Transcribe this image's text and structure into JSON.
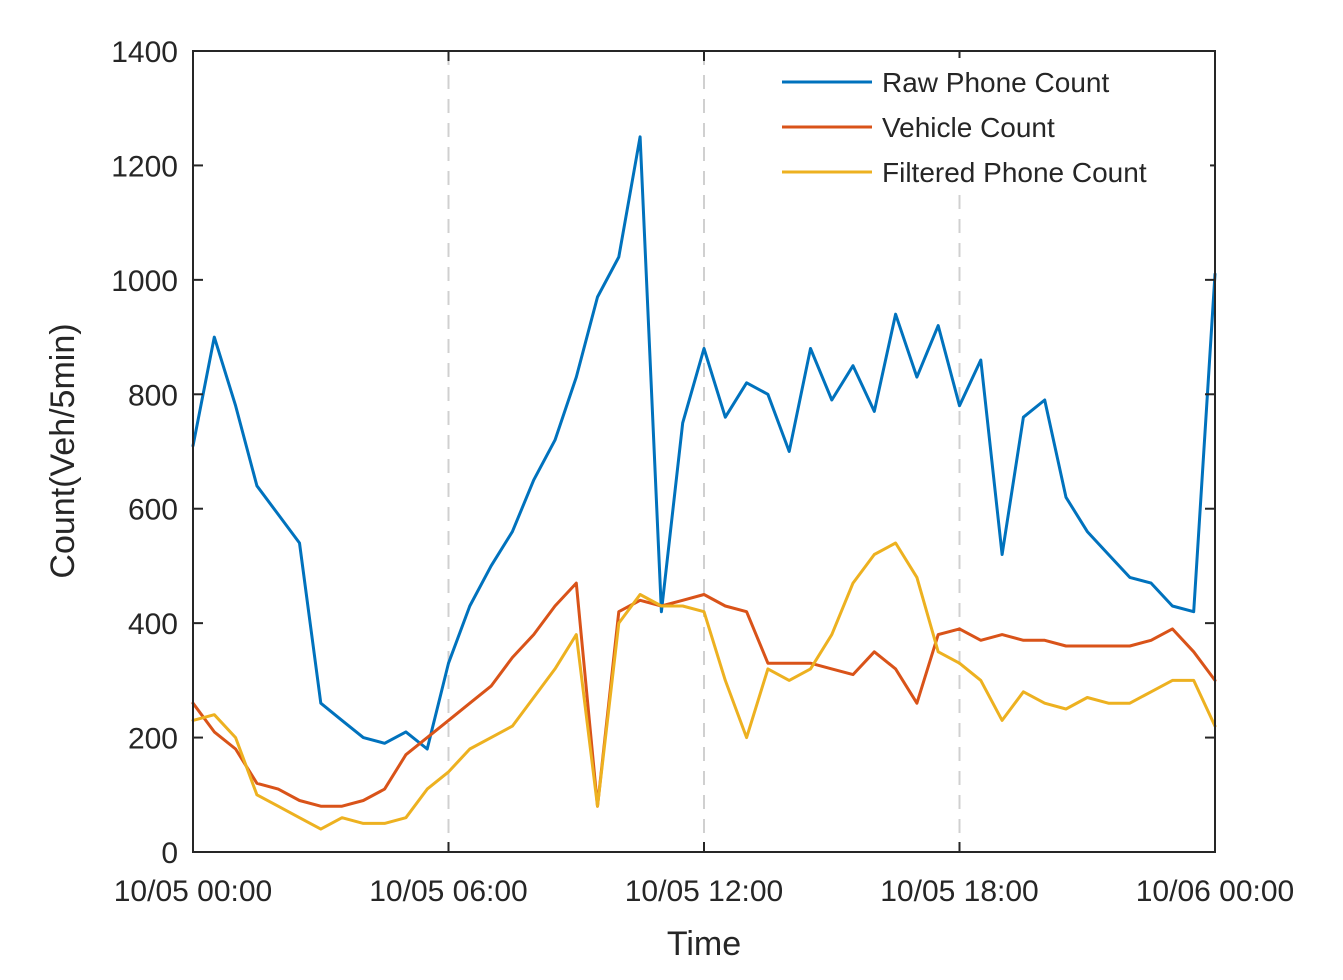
{
  "chart_data": {
    "type": "line",
    "title": "",
    "xlabel": "Time",
    "ylabel": "Count(Veh/5min)",
    "xlim": [
      "10/05 00:00",
      "10/06 00:00"
    ],
    "ylim": [
      0,
      1400
    ],
    "x_tick_labels": [
      "10/05 00:00",
      "10/05 06:00",
      "10/05 12:00",
      "10/05 18:00",
      "10/06 00:00"
    ],
    "y_ticks": [
      0,
      200,
      400,
      600,
      800,
      1000,
      1200,
      1400
    ],
    "vertical_dashed_gridlines_at": [
      "10/05 06:00",
      "10/05 12:00",
      "10/05 18:00"
    ],
    "legend_position": "top-right",
    "x_hours": [
      0,
      0.5,
      1,
      1.5,
      2,
      2.5,
      3,
      3.5,
      4,
      4.5,
      5,
      5.5,
      6,
      6.5,
      7,
      7.5,
      8,
      8.5,
      9,
      9.5,
      10,
      10.5,
      11,
      11.5,
      12,
      12.5,
      13,
      13.5,
      14,
      14.5,
      15,
      15.5,
      16,
      16.5,
      17,
      17.5,
      18,
      18.5,
      19,
      19.5,
      20,
      20.5,
      21,
      21.5,
      22,
      22.5,
      23,
      23.5,
      24
    ],
    "series": [
      {
        "name": "Raw Phone Count",
        "color": "#0072BD",
        "values": [
          710,
          900,
          780,
          640,
          590,
          540,
          260,
          230,
          200,
          190,
          210,
          180,
          330,
          430,
          500,
          560,
          650,
          720,
          830,
          970,
          1040,
          1250,
          420,
          750,
          880,
          760,
          820,
          800,
          700,
          880,
          790,
          850,
          770,
          940,
          830,
          920,
          780,
          860,
          520,
          760,
          790,
          620,
          560,
          520,
          480,
          470,
          430,
          420,
          1010
        ]
      },
      {
        "name": "Vehicle Count",
        "color": "#D95319",
        "values": [
          260,
          210,
          180,
          120,
          110,
          90,
          80,
          80,
          90,
          110,
          170,
          200,
          230,
          260,
          290,
          340,
          380,
          430,
          470,
          80,
          420,
          440,
          430,
          440,
          450,
          430,
          420,
          330,
          330,
          330,
          320,
          310,
          350,
          320,
          260,
          380,
          390,
          370,
          380,
          370,
          370,
          360,
          360,
          360,
          360,
          370,
          390,
          350,
          300
        ]
      },
      {
        "name": "Filtered Phone Count",
        "color": "#EDB120",
        "values": [
          230,
          240,
          200,
          100,
          80,
          60,
          40,
          60,
          50,
          50,
          60,
          110,
          140,
          180,
          200,
          220,
          270,
          320,
          380,
          80,
          400,
          450,
          430,
          430,
          420,
          300,
          200,
          320,
          300,
          320,
          380,
          470,
          520,
          540,
          480,
          350,
          330,
          300,
          230,
          280,
          260,
          250,
          270,
          260,
          260,
          280,
          300,
          300,
          220
        ]
      }
    ]
  }
}
